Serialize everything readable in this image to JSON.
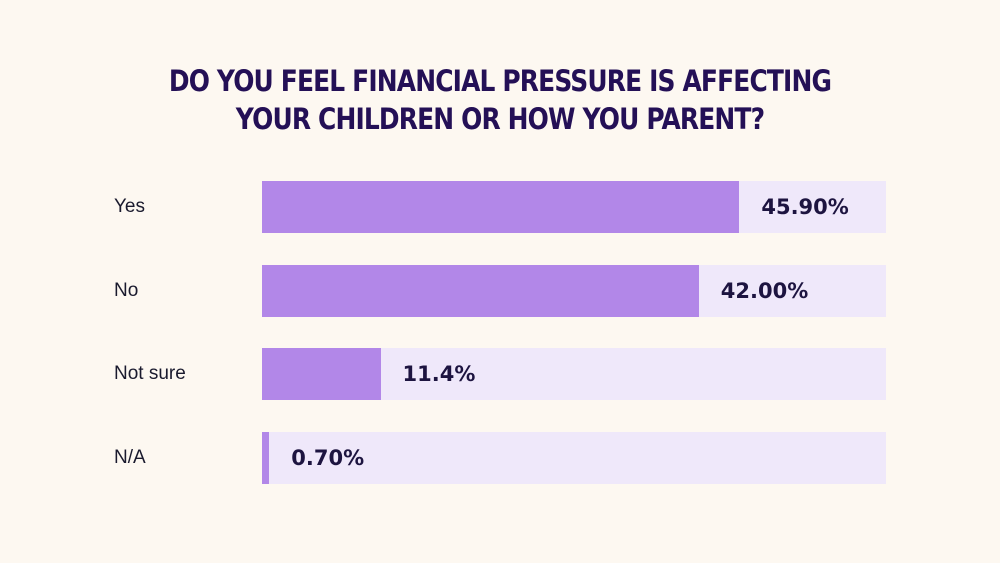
{
  "title_lines": [
    "DO YOU FEEL FINANCIAL PRESSURE IS AFFECTING",
    "YOUR CHILDREN OR HOW YOU PARENT?"
  ],
  "colors": {
    "background": "#fdf8f1",
    "bar_fill": "#b287e8",
    "bar_track": "#efe8fa",
    "title": "#241056",
    "value_text": "#1d1440"
  },
  "chart_data": {
    "type": "bar",
    "orientation": "horizontal",
    "title": "DO YOU FEEL FINANCIAL PRESSURE IS AFFECTING YOUR CHILDREN OR HOW YOU PARENT?",
    "categories": [
      "Yes",
      "No",
      "Not sure",
      "N/A"
    ],
    "values": [
      45.9,
      42.0,
      11.4,
      0.7
    ],
    "value_labels": [
      "45.90%",
      "42.00%",
      "11.4%",
      "0.70%"
    ],
    "xlim": [
      0,
      60
    ],
    "grid": false,
    "legend": "none"
  }
}
